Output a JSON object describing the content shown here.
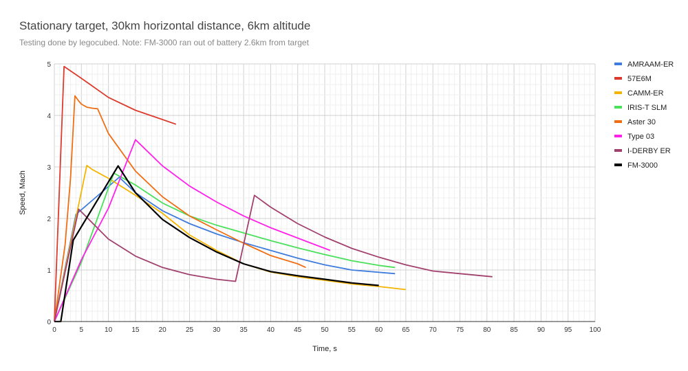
{
  "chart_data": {
    "type": "line",
    "title": "Stationary target, 30km horizontal distance, 6km altitude",
    "subtitle": "Testing done by legocubed. Note: FM-3000 ran out of battery 2.6km from target",
    "xlabel": "Time, s",
    "ylabel": "Speed, Mach",
    "xlim": [
      0,
      100
    ],
    "ylim": [
      0,
      5
    ],
    "xticks": [
      "0",
      "5",
      "10",
      "15",
      "20",
      "25",
      "30",
      "35",
      "40",
      "45",
      "50",
      "55",
      "60",
      "65",
      "70",
      "75",
      "80",
      "85",
      "90",
      "95",
      "100"
    ],
    "yticks": [
      "0",
      "1",
      "2",
      "3",
      "4",
      "5"
    ],
    "grid": true,
    "legend_position": "right",
    "series": [
      {
        "name": "AMRAAM-ER",
        "color": "#3d7bde",
        "points": [
          [
            0,
            0
          ],
          [
            4,
            2.08
          ],
          [
            12,
            2.8
          ],
          [
            15,
            2.5
          ],
          [
            20,
            2.15
          ],
          [
            25,
            1.9
          ],
          [
            30,
            1.7
          ],
          [
            35,
            1.53
          ],
          [
            40,
            1.38
          ],
          [
            45,
            1.23
          ],
          [
            50,
            1.1
          ],
          [
            55,
            1.0
          ],
          [
            63,
            0.93
          ]
        ]
      },
      {
        "name": "57E6M",
        "color": "#dc3a2c",
        "points": [
          [
            0,
            0
          ],
          [
            1.8,
            4.95
          ],
          [
            5,
            4.72
          ],
          [
            10,
            4.35
          ],
          [
            15,
            4.1
          ],
          [
            20,
            3.92
          ],
          [
            22.5,
            3.83
          ]
        ]
      },
      {
        "name": "CAMM-ER",
        "color": "#f4b400",
        "points": [
          [
            0,
            0
          ],
          [
            6,
            3.03
          ],
          [
            7,
            2.95
          ],
          [
            10,
            2.78
          ],
          [
            15,
            2.45
          ],
          [
            20,
            2.1
          ],
          [
            25,
            1.68
          ],
          [
            30,
            1.38
          ],
          [
            35,
            1.12
          ],
          [
            40,
            0.96
          ],
          [
            45,
            0.87
          ],
          [
            50,
            0.8
          ],
          [
            55,
            0.73
          ],
          [
            60,
            0.68
          ],
          [
            65,
            0.62
          ]
        ]
      },
      {
        "name": "IRIS-T SLM",
        "color": "#49e05a",
        "points": [
          [
            0,
            0
          ],
          [
            5,
            1.15
          ],
          [
            11,
            2.88
          ],
          [
            15,
            2.65
          ],
          [
            20,
            2.3
          ],
          [
            25,
            2.05
          ],
          [
            30,
            1.87
          ],
          [
            35,
            1.72
          ],
          [
            40,
            1.57
          ],
          [
            45,
            1.43
          ],
          [
            50,
            1.3
          ],
          [
            55,
            1.18
          ],
          [
            60,
            1.09
          ],
          [
            63,
            1.05
          ]
        ]
      },
      {
        "name": "Aster 30",
        "color": "#f06d12",
        "points": [
          [
            0,
            0
          ],
          [
            2,
            1.5
          ],
          [
            3,
            2.8
          ],
          [
            3.8,
            4.38
          ],
          [
            4.5,
            4.28
          ],
          [
            5,
            4.22
          ],
          [
            6,
            4.16
          ],
          [
            7,
            4.14
          ],
          [
            8,
            4.13
          ],
          [
            10,
            3.65
          ],
          [
            15,
            2.92
          ],
          [
            20,
            2.42
          ],
          [
            25,
            2.05
          ],
          [
            30,
            1.78
          ],
          [
            35,
            1.52
          ],
          [
            40,
            1.28
          ],
          [
            45,
            1.12
          ],
          [
            46.5,
            1.05
          ]
        ]
      },
      {
        "name": "Type 03",
        "color": "#ff21ea",
        "points": [
          [
            0,
            0
          ],
          [
            5,
            1.2
          ],
          [
            10,
            2.2
          ],
          [
            15,
            3.53
          ],
          [
            20,
            3.02
          ],
          [
            25,
            2.63
          ],
          [
            30,
            2.32
          ],
          [
            35,
            2.05
          ],
          [
            40,
            1.82
          ],
          [
            45,
            1.62
          ],
          [
            51,
            1.38
          ]
        ]
      },
      {
        "name": "I-DERBY ER",
        "color": "#a1406d",
        "points": [
          [
            0,
            0
          ],
          [
            4.5,
            2.18
          ],
          [
            10,
            1.6
          ],
          [
            15,
            1.27
          ],
          [
            20,
            1.05
          ],
          [
            25,
            0.91
          ],
          [
            30,
            0.82
          ],
          [
            33.5,
            0.78
          ],
          [
            37,
            2.45
          ],
          [
            40,
            2.22
          ],
          [
            45,
            1.9
          ],
          [
            50,
            1.64
          ],
          [
            55,
            1.42
          ],
          [
            60,
            1.25
          ],
          [
            65,
            1.1
          ],
          [
            70,
            0.98
          ],
          [
            75,
            0.93
          ],
          [
            81,
            0.87
          ]
        ]
      },
      {
        "name": "FM-3000",
        "color": "#000000",
        "points": [
          [
            0,
            0
          ],
          [
            1.2,
            0
          ],
          [
            3.5,
            1.58
          ],
          [
            11.8,
            3.02
          ],
          [
            15,
            2.5
          ],
          [
            20,
            1.98
          ],
          [
            25,
            1.63
          ],
          [
            30,
            1.35
          ],
          [
            35,
            1.12
          ],
          [
            40,
            0.97
          ],
          [
            45,
            0.89
          ],
          [
            50,
            0.82
          ],
          [
            55,
            0.75
          ],
          [
            60,
            0.7
          ]
        ]
      }
    ]
  }
}
